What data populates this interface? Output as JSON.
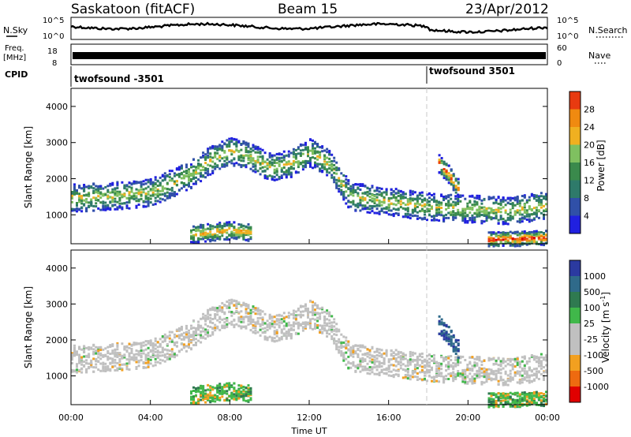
{
  "header": {
    "title": "Saskatoon (fitACF)",
    "beam": "Beam 15",
    "date": "23/Apr/2012"
  },
  "top_panels": {
    "nsky_label": "N.Sky",
    "nsky_ticks": [
      "10^5",
      "10^0"
    ],
    "nsearch_label": "N.Search",
    "nsearch_ticks": [
      "10^5",
      "10^0"
    ],
    "freq_label": "Freq.",
    "freq_unit": "[MHz]",
    "freq_ticks": [
      "18",
      "8"
    ],
    "nave_label": "Nave",
    "nave_ticks": [
      "60",
      "0"
    ],
    "cpid_label": "CPID",
    "cpid_segments": [
      {
        "label": "twofsound -3501",
        "start_hour": 0
      },
      {
        "label": "twofsound 3501",
        "start_hour": 18
      }
    ]
  },
  "colors": {
    "power_scale": [
      "#2020e0",
      "#3050a8",
      "#2e7a6a",
      "#3a8a4c",
      "#7fc060",
      "#f0b020",
      "#f08a10",
      "#e83a10",
      "#d80000"
    ],
    "velocity_scale": [
      "#2b3aa0",
      "#2f6a8a",
      "#2f7a50",
      "#40b84a",
      "#c0c0c0",
      "#c0c0c0",
      "#f2a020",
      "#ee6a10",
      "#e00000"
    ],
    "divider": "#c8c8c8"
  },
  "chart_data": [
    {
      "type": "heatmap",
      "name": "power",
      "ylabel": "Slant Range [km]",
      "yticks": [
        "1000",
        "2000",
        "3000",
        "4000"
      ],
      "ylim": [
        200,
        4500
      ],
      "xlim_hours": [
        0,
        24
      ],
      "colorbar": {
        "label": "Power [dB]",
        "ticks": [
          "4",
          "8",
          "12",
          "16",
          "20",
          "24",
          "28"
        ],
        "range": [
          0,
          32
        ]
      },
      "bands": [
        {
          "x": [
            0,
            2,
            4,
            6,
            7,
            8,
            9,
            10,
            11,
            12,
            13,
            14,
            16,
            18,
            20,
            22,
            24
          ],
          "center": [
            1450,
            1500,
            1600,
            2100,
            2500,
            2750,
            2600,
            2300,
            2400,
            2700,
            2400,
            1500,
            1350,
            1200,
            1150,
            1100,
            1250
          ],
          "width": 380,
          "power": 18
        },
        {
          "x": [
            6,
            7,
            8,
            9
          ],
          "center": [
            450,
            500,
            550,
            500
          ],
          "width": 250,
          "power": 22
        },
        {
          "x": [
            21,
            22,
            23,
            24
          ],
          "center": [
            300,
            320,
            330,
            350
          ],
          "width": 200,
          "power": 28
        },
        {
          "x": [
            18.5,
            19,
            19.5
          ],
          "center": [
            2400,
            2100,
            1700
          ],
          "width": 250,
          "power": 26
        }
      ]
    },
    {
      "type": "heatmap",
      "name": "velocity",
      "ylabel": "Slant Range [km]",
      "yticks": [
        "1000",
        "2000",
        "3000",
        "4000"
      ],
      "ylim": [
        200,
        4500
      ],
      "xlim_hours": [
        0,
        24
      ],
      "colorbar": {
        "label": "Velocity [m s^-1]",
        "ticks": [
          "1000",
          "500",
          "100",
          "25",
          "-25",
          "-100",
          "-500",
          "-1000"
        ]
      },
      "xticks": [
        "00:00",
        "04:00",
        "08:00",
        "12:00",
        "16:00",
        "20:00",
        "00:00"
      ],
      "xlabel": "Time UT"
    }
  ]
}
